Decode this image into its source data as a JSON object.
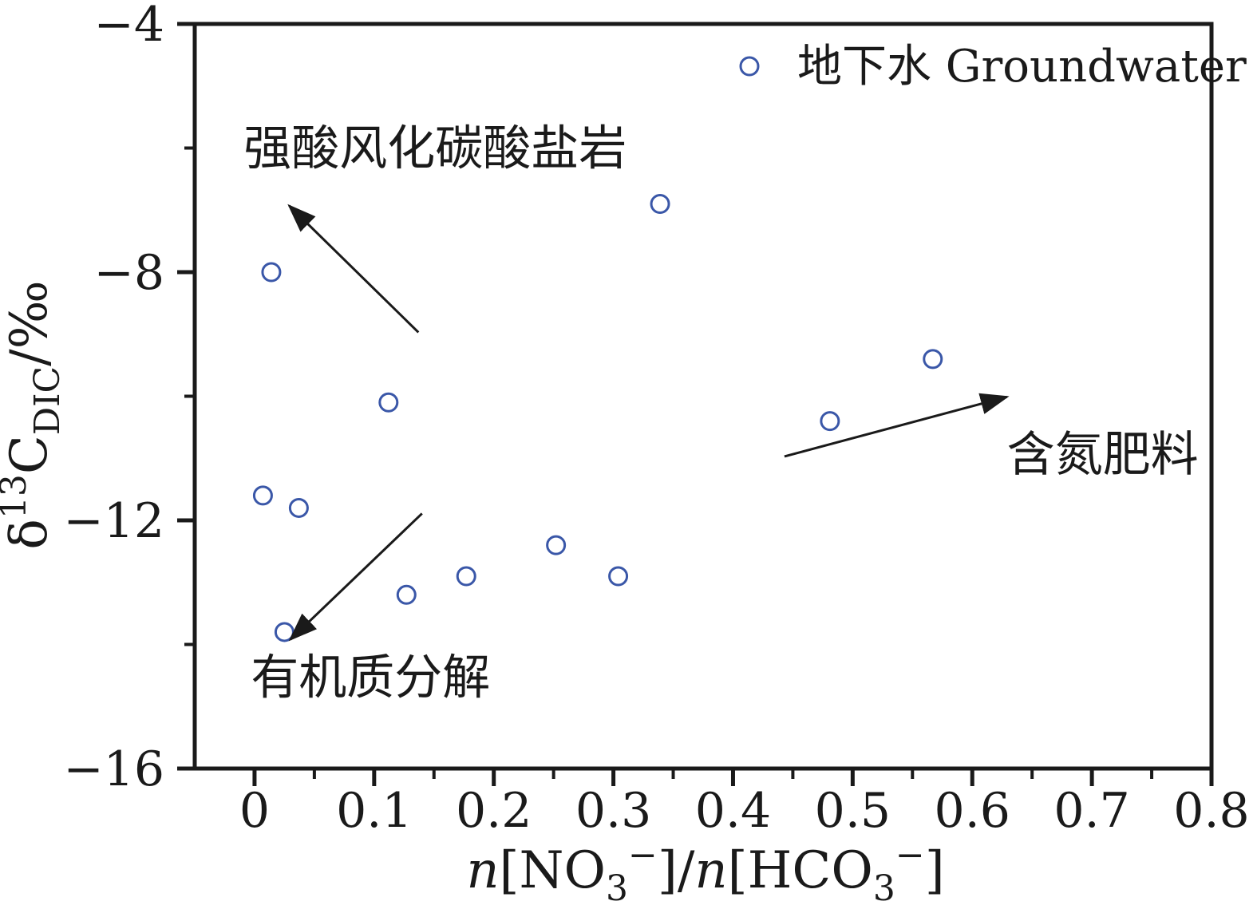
{
  "chart_data": {
    "type": "scatter",
    "title": "",
    "xlabel": "n[NO3−]/n[HCO3−]",
    "ylabel": "δ13C_DIC/‰",
    "xlabel_rich": [
      {
        "text": "n",
        "italic": true
      },
      {
        "text": "[NO"
      },
      {
        "text": "3",
        "script": "sub"
      },
      {
        "text": "−",
        "script": "super"
      },
      {
        "text": "]/"
      },
      {
        "text": "n",
        "italic": true
      },
      {
        "text": "[HCO"
      },
      {
        "text": "3",
        "script": "sub"
      },
      {
        "text": "−",
        "script": "super"
      },
      {
        "text": "]"
      }
    ],
    "ylabel_rich": [
      {
        "text": "δ"
      },
      {
        "text": "13",
        "script": "super"
      },
      {
        "text": "C"
      },
      {
        "text": "DIC",
        "script": "sub"
      },
      {
        "text": "/‰"
      }
    ],
    "xlim": [
      -0.05,
      0.8
    ],
    "ylim": [
      -16,
      -4
    ],
    "grid": false,
    "axis_color": "#1a1a1a",
    "x_ticks": {
      "major": [
        0,
        0.1,
        0.2,
        0.3,
        0.4,
        0.5,
        0.6,
        0.7,
        0.8
      ],
      "labels": [
        "0",
        "0.1",
        "0.2",
        "0.3",
        "0.4",
        "0.5",
        "0.6",
        "0.7",
        "0.8"
      ],
      "minor": [
        0.05,
        0.15,
        0.25,
        0.35,
        0.45,
        0.55,
        0.65,
        0.75
      ]
    },
    "y_ticks": {
      "major": [
        -4,
        -8,
        -12,
        -16
      ],
      "labels": [
        "−4",
        "−8",
        "−12",
        "−16"
      ],
      "minor": [
        -6,
        -10,
        -14
      ]
    },
    "legend": {
      "label": "地下水 Groundwater",
      "position": "top-right",
      "marker": "open-circle"
    },
    "marker_radius": 11,
    "series": [
      {
        "name": "地下水 Groundwater",
        "marker": "open-circle",
        "color": "#3a57a8",
        "points": [
          {
            "x": 0.014,
            "y": -8.0
          },
          {
            "x": 0.339,
            "y": -6.9
          },
          {
            "x": 0.112,
            "y": -10.1
          },
          {
            "x": 0.567,
            "y": -9.4
          },
          {
            "x": 0.481,
            "y": -10.4
          },
          {
            "x": 0.007,
            "y": -11.6
          },
          {
            "x": 0.037,
            "y": -11.8
          },
          {
            "x": 0.252,
            "y": -12.4
          },
          {
            "x": 0.177,
            "y": -12.9
          },
          {
            "x": 0.304,
            "y": -12.9
          },
          {
            "x": 0.127,
            "y": -13.2
          },
          {
            "x": 0.025,
            "y": -13.8
          }
        ]
      }
    ],
    "annotations": [
      {
        "label": "强酸风化碳酸盐岩",
        "x": 0.151,
        "y": -6.0,
        "arrow": {
          "x1": 0.137,
          "y1": -8.97,
          "x2": 0.029,
          "y2": -6.93
        }
      },
      {
        "label": "有机质分解",
        "x": 0.097,
        "y": -14.53,
        "arrow": {
          "x1": 0.14,
          "y1": -11.89,
          "x2": 0.03,
          "y2": -13.92
        }
      },
      {
        "label": "含氮肥料",
        "x": 0.709,
        "y": -10.93,
        "arrow": {
          "x1": 0.443,
          "y1": -10.97,
          "x2": 0.629,
          "y2": -10.01
        }
      }
    ]
  }
}
